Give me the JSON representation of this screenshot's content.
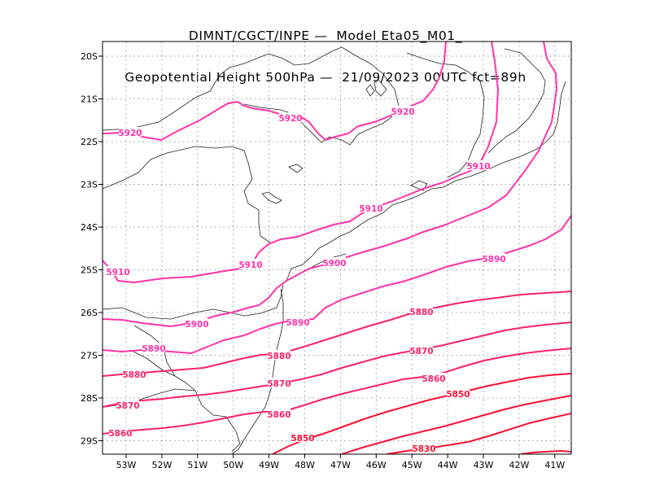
{
  "title": {
    "line1": "DIMNT/CGCT/INPE —  Model Eta05_M01_",
    "line2": "Geopotential Height 500hPa —  21/09/2023 00UTC fct=89h"
  },
  "axes": {
    "lon_labels": [
      "53W",
      "52W",
      "51W",
      "50W",
      "49W",
      "48W",
      "47W",
      "46W",
      "45W",
      "44W",
      "43W",
      "42W",
      "41W"
    ],
    "lat_labels": [
      "20S",
      "21S",
      "22S",
      "23S",
      "24S",
      "25S",
      "26S",
      "27S",
      "28S",
      "29S"
    ]
  },
  "colors": {
    "high": "#ff33aa",
    "mid": "#ff2266",
    "low": "#ff1133",
    "coast": "#222222",
    "grid": "#9a9a9a"
  },
  "contours": [
    {
      "value": 5920,
      "labels": [
        "5920",
        "5920",
        "5920"
      ]
    },
    {
      "value": 5910,
      "labels": [
        "5910",
        "5910",
        "5910",
        "5910"
      ]
    },
    {
      "value": 5900,
      "labels": [
        "5900",
        "5900"
      ]
    },
    {
      "value": 5890,
      "labels": [
        "5890",
        "5890",
        "5890"
      ]
    },
    {
      "value": 5880,
      "labels": [
        "5880",
        "5880",
        "5880"
      ]
    },
    {
      "value": 5870,
      "labels": [
        "5870",
        "5870",
        "5870"
      ]
    },
    {
      "value": 5860,
      "labels": [
        "5860",
        "5860",
        "5860"
      ]
    },
    {
      "value": 5850,
      "labels": [
        "5850",
        "5850"
      ]
    },
    {
      "value": 5840,
      "labels": []
    },
    {
      "value": 5830,
      "labels": [
        "5830"
      ]
    },
    {
      "value": 5820,
      "labels": []
    }
  ]
}
